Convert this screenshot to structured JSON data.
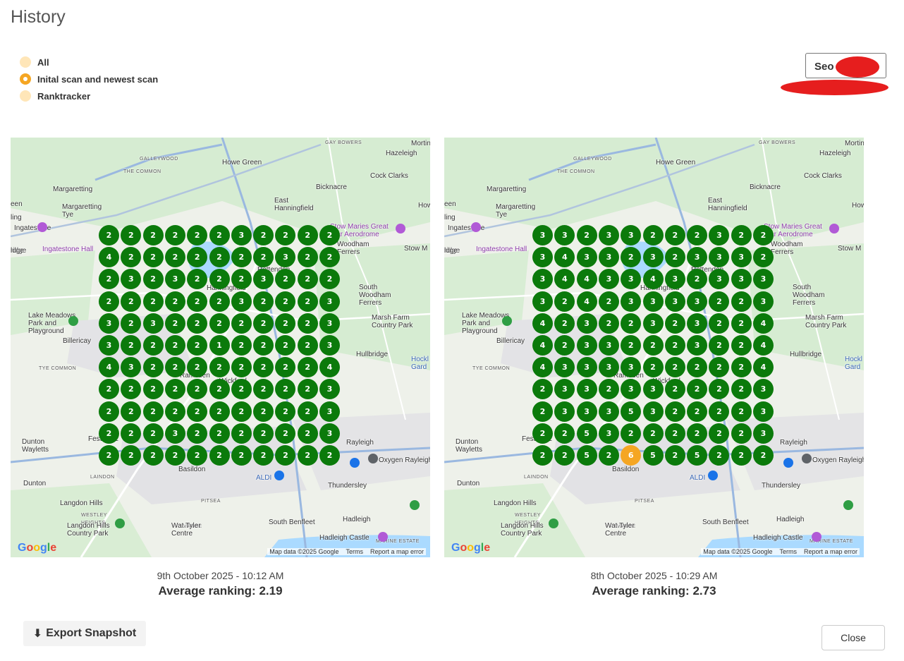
{
  "page": {
    "title": "History"
  },
  "filters": {
    "options": [
      {
        "label": "All",
        "selected": false
      },
      {
        "label": "Inital scan and newest scan",
        "selected": true
      },
      {
        "label": "Ranktracker",
        "selected": false
      }
    ]
  },
  "select": {
    "visible_text": "Seo"
  },
  "map_common": {
    "places": {
      "mortin": "Mortin",
      "hazeleigh": "Hazeleigh",
      "gay_bowers": "GAY BOWERS",
      "galleywood": "GALLEYWOOD",
      "howe_green": "Howe Green",
      "the_common": "THE COMMON",
      "cock_clarks": "Cock Clarks",
      "margaretting": "Margaretting",
      "bicknacre": "Bicknacre",
      "east_hanningfield": "East\nHanningfield",
      "margaretting_tye": "Margaretting\nTye",
      "een": "een",
      "ling": "ling",
      "how": "How",
      "ingatestone": "Ingatestone",
      "stow_maries": "Stow Maries Great\nWar Aerodrome",
      "woodham_ferrers": "Woodham\nFerrers",
      "stow_m": "Stow M",
      "ingatestone_hall": "Ingatestone Hall",
      "ridge": "ridge",
      "south_woodham": "South\nWoodham\nFerrers",
      "lake_meadows": "Lake Meadows\nPark and\nPlayground",
      "marsh_farm": "Marsh Farm\nCountry Park",
      "billericay": "Billericay",
      "hullbridge": "Hullbridge",
      "hockl": "Hockl\nGard",
      "tye_common": "TYE COMMON",
      "dunton_wayletts": "Dunton\nWayletts",
      "festival": "Festival L",
      "rayleigh": "Rayleigh",
      "oxygen": "Oxygen Rayleigh",
      "dunton": "Dunton",
      "laindon": "LAINDON",
      "aldi": "ALDI",
      "thundersley": "Thundersley",
      "pitsea": "PITSEA",
      "langdon_hills": "Langdon Hills",
      "westley": "WESTLEY\nHEIGHTS",
      "langdon_park": "Langdon Hills\nCountry Park",
      "vange": "VANGE",
      "wat_tyler": "Wat Tyler\nCentre",
      "south_benfleet": "South Benfleet",
      "hadleigh": "Hadleigh",
      "hadleigh_castle": "Hadleigh Castle",
      "marine_estate": "MARINE ESTATE",
      "basildon": "Basildon",
      "wickford": "Wickford",
      "ramsden": "Ramsden",
      "hanningfield_res": "Hanningfield",
      "rettendon": "Rettendon",
      "ldge": "ldge"
    },
    "google_logo": "Google",
    "attribution": {
      "data": "Map data ©2025 Google",
      "terms": "Terms",
      "report": "Report a map error"
    }
  },
  "scans": [
    {
      "date": "9th October 2025 - 10:12 AM",
      "average": "Average ranking: 2.19",
      "grid": [
        [
          2,
          2,
          2,
          2,
          2,
          2,
          3,
          2,
          2,
          2,
          2
        ],
        [
          4,
          2,
          2,
          2,
          2,
          2,
          2,
          2,
          3,
          2,
          2
        ],
        [
          2,
          3,
          2,
          3,
          2,
          2,
          2,
          3,
          2,
          2,
          2
        ],
        [
          2,
          2,
          2,
          2,
          2,
          2,
          3,
          2,
          2,
          2,
          3
        ],
        [
          3,
          2,
          3,
          2,
          2,
          2,
          2,
          2,
          2,
          2,
          3
        ],
        [
          3,
          2,
          2,
          2,
          2,
          1,
          2,
          2,
          2,
          2,
          3
        ],
        [
          4,
          3,
          2,
          2,
          2,
          2,
          2,
          2,
          2,
          2,
          4
        ],
        [
          2,
          2,
          2,
          2,
          2,
          2,
          2,
          2,
          2,
          2,
          3
        ],
        [
          2,
          2,
          2,
          2,
          2,
          2,
          2,
          2,
          2,
          2,
          3
        ],
        [
          2,
          2,
          2,
          3,
          2,
          2,
          2,
          2,
          2,
          2,
          3
        ],
        [
          2,
          2,
          2,
          2,
          2,
          2,
          2,
          2,
          2,
          2,
          2
        ]
      ]
    },
    {
      "date": "8th October 2025 - 10:29 AM",
      "average": "Average ranking: 2.73",
      "grid": [
        [
          3,
          3,
          2,
          3,
          3,
          2,
          2,
          2,
          3,
          2,
          2
        ],
        [
          3,
          4,
          3,
          3,
          2,
          3,
          2,
          3,
          3,
          3,
          2
        ],
        [
          3,
          4,
          4,
          3,
          3,
          4,
          3,
          2,
          3,
          3,
          3
        ],
        [
          3,
          2,
          4,
          2,
          3,
          3,
          3,
          3,
          2,
          2,
          3
        ],
        [
          4,
          2,
          3,
          2,
          2,
          3,
          2,
          3,
          2,
          2,
          4
        ],
        [
          4,
          2,
          3,
          3,
          2,
          2,
          2,
          3,
          2,
          2,
          4
        ],
        [
          4,
          3,
          3,
          3,
          3,
          2,
          2,
          2,
          2,
          2,
          4
        ],
        [
          2,
          3,
          3,
          2,
          3,
          3,
          2,
          2,
          2,
          2,
          3
        ],
        [
          2,
          3,
          3,
          3,
          5,
          3,
          2,
          2,
          2,
          2,
          3
        ],
        [
          2,
          2,
          5,
          3,
          2,
          2,
          2,
          2,
          2,
          2,
          3
        ],
        [
          2,
          2,
          5,
          2,
          6,
          5,
          2,
          5,
          2,
          2,
          2
        ]
      ]
    }
  ],
  "colors": {
    "pin_green": "#0b7a0b",
    "pin_orange": "#f5a623",
    "radio_selected": "#f5a623",
    "radio_idle": "#ffe6b8"
  },
  "buttons": {
    "export": "Export Snapshot",
    "close": "Close"
  }
}
